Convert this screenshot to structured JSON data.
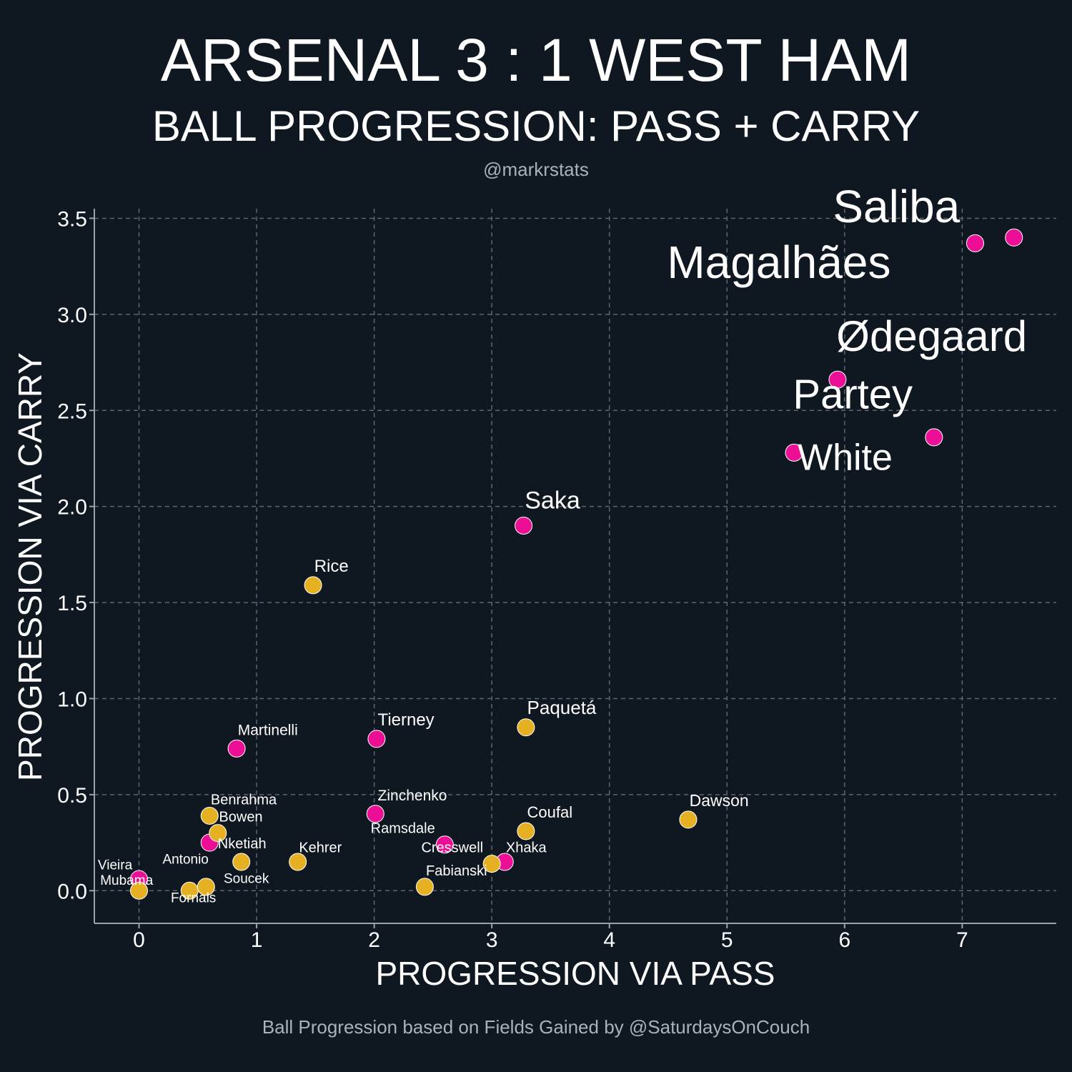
{
  "header": {
    "title": "ARSENAL 3 : 1 WEST HAM",
    "subtitle": "BALL PROGRESSION: PASS + CARRY",
    "handle": "@markrstats"
  },
  "footer": {
    "caption": "Ball Progression based on Fields Gained by @SaturdaysOnCouch"
  },
  "colors": {
    "background": "#0f1820",
    "arsenal": "#ec0f96",
    "westham": "#e5b122",
    "grid": "#5c6570",
    "axis": "#9aa3ab",
    "text": "#ffffff",
    "muted": "#aab2b9"
  },
  "chart_data": {
    "type": "scatter",
    "xlabel": "PROGRESSION VIA PASS",
    "ylabel": "PROGRESSION VIA CARRY",
    "xlim": [
      -0.38,
      7.8
    ],
    "ylim": [
      -0.17,
      3.55
    ],
    "xticks": [
      0,
      1,
      2,
      3,
      4,
      5,
      6,
      7
    ],
    "yticks": [
      0.0,
      0.5,
      1.0,
      1.5,
      2.0,
      2.5,
      3.0,
      3.5
    ],
    "ytick_labels": [
      "0.0",
      "0.5",
      "1.0",
      "1.5",
      "2.0",
      "2.5",
      "3.0",
      "3.5"
    ],
    "grid": true,
    "series": [
      {
        "team": "arsenal",
        "points": [
          {
            "x": 0.0,
            "y": 0.06
          },
          {
            "x": 0.6,
            "y": 0.25
          },
          {
            "x": 0.83,
            "y": 0.74
          },
          {
            "x": 2.01,
            "y": 0.4
          },
          {
            "x": 2.02,
            "y": 0.79
          },
          {
            "x": 2.6,
            "y": 0.24
          },
          {
            "x": 3.11,
            "y": 0.15
          },
          {
            "x": 3.27,
            "y": 1.9
          },
          {
            "x": 5.57,
            "y": 2.28
          },
          {
            "x": 5.94,
            "y": 2.66
          },
          {
            "x": 6.76,
            "y": 2.36
          },
          {
            "x": 7.11,
            "y": 3.37
          },
          {
            "x": 7.44,
            "y": 3.4
          }
        ]
      },
      {
        "team": "westham",
        "points": [
          {
            "x": 0.0,
            "y": 0.0
          },
          {
            "x": 0.43,
            "y": 0.0
          },
          {
            "x": 0.57,
            "y": 0.02
          },
          {
            "x": 0.6,
            "y": 0.39
          },
          {
            "x": 0.67,
            "y": 0.3
          },
          {
            "x": 0.87,
            "y": 0.15
          },
          {
            "x": 1.35,
            "y": 0.15
          },
          {
            "x": 1.48,
            "y": 1.59
          },
          {
            "x": 2.43,
            "y": 0.02
          },
          {
            "x": 3.0,
            "y": 0.14
          },
          {
            "x": 3.29,
            "y": 0.85
          },
          {
            "x": 3.29,
            "y": 0.31
          },
          {
            "x": 4.67,
            "y": 0.37
          }
        ]
      }
    ],
    "labels": [
      {
        "text": "Saliba",
        "x": 5.9,
        "y": 3.48,
        "size": 64
      },
      {
        "text": "Magalhães",
        "x": 4.49,
        "y": 3.19,
        "size": 64
      },
      {
        "text": "Ødegaard",
        "x": 5.93,
        "y": 2.81,
        "size": 60
      },
      {
        "text": "Partey",
        "x": 5.56,
        "y": 2.51,
        "size": 58
      },
      {
        "text": "White",
        "x": 5.6,
        "y": 2.19,
        "size": 52
      },
      {
        "text": "Saka",
        "x": 3.28,
        "y": 1.99,
        "size": 34
      },
      {
        "text": "Rice",
        "x": 1.49,
        "y": 1.66,
        "size": 24
      },
      {
        "text": "Paquetá",
        "x": 3.3,
        "y": 0.92,
        "size": 26
      },
      {
        "text": "Tierney",
        "x": 2.03,
        "y": 0.86,
        "size": 24
      },
      {
        "text": "Martinelli",
        "x": 0.84,
        "y": 0.81,
        "size": 21
      },
      {
        "text": "Zinchenko",
        "x": 2.03,
        "y": 0.47,
        "size": 21
      },
      {
        "text": "Dawson",
        "x": 4.68,
        "y": 0.44,
        "size": 23
      },
      {
        "text": "Benrahma",
        "x": 0.61,
        "y": 0.45,
        "size": 20
      },
      {
        "text": "Bowen",
        "x": 0.68,
        "y": 0.36,
        "size": 20
      },
      {
        "text": "Coufal",
        "x": 3.3,
        "y": 0.38,
        "size": 22
      },
      {
        "text": "Ramsdale",
        "x": 1.97,
        "y": 0.3,
        "size": 20
      },
      {
        "text": "Nketiah",
        "x": 0.67,
        "y": 0.22,
        "size": 20
      },
      {
        "text": "Cresswell",
        "x": 2.4,
        "y": 0.2,
        "size": 20
      },
      {
        "text": "Xhaka",
        "x": 3.12,
        "y": 0.2,
        "size": 20
      },
      {
        "text": "Kehrer",
        "x": 1.36,
        "y": 0.2,
        "size": 20
      },
      {
        "text": "Antonio",
        "x": 0.2,
        "y": 0.14,
        "size": 19
      },
      {
        "text": "Vieira",
        "x": -0.35,
        "y": 0.11,
        "size": 19
      },
      {
        "text": "Fabianski",
        "x": 2.44,
        "y": 0.08,
        "size": 20
      },
      {
        "text": "Mubama",
        "x": -0.33,
        "y": 0.03,
        "size": 19
      },
      {
        "text": "Soucek",
        "x": 0.72,
        "y": 0.04,
        "size": 19
      },
      {
        "text": "Fornals",
        "x": 0.27,
        "y": -0.06,
        "size": 19
      }
    ]
  }
}
